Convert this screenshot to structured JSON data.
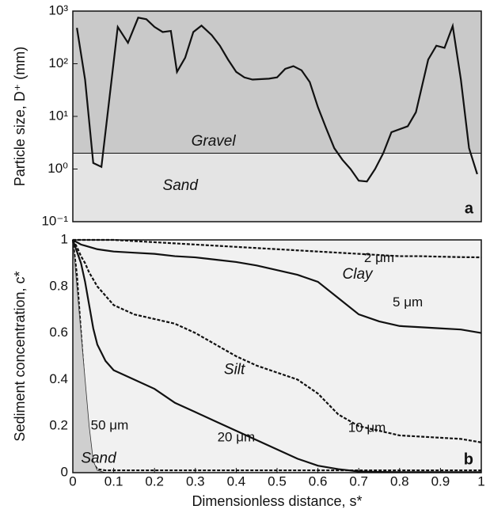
{
  "chart_data": [
    {
      "type": "line",
      "ylabel": "Particle size, D⁺ (mm)",
      "panel_label": "a",
      "ylog": true,
      "xlim": [
        0,
        1
      ],
      "ylim": [
        0.1,
        1000
      ],
      "yticks": [
        {
          "value": 0.1,
          "label": "10⁻¹"
        },
        {
          "value": 1,
          "label": "10⁰"
        },
        {
          "value": 10,
          "label": "10¹"
        },
        {
          "value": 100,
          "label": "10²"
        },
        {
          "value": 1000,
          "label": "10³"
        }
      ],
      "threshold": 2,
      "regions": [
        "Gravel",
        "Sand"
      ],
      "colors": [
        "#c9c9c9",
        "#e4e4e4"
      ],
      "x": [
        0.01,
        0.03,
        0.05,
        0.07,
        0.11,
        0.135,
        0.16,
        0.18,
        0.2,
        0.22,
        0.24,
        0.255,
        0.275,
        0.295,
        0.315,
        0.34,
        0.36,
        0.38,
        0.4,
        0.42,
        0.44,
        0.48,
        0.5,
        0.52,
        0.54,
        0.56,
        0.58,
        0.6,
        0.62,
        0.64,
        0.66,
        0.68,
        0.7,
        0.72,
        0.74,
        0.76,
        0.78,
        0.82,
        0.84,
        0.87,
        0.89,
        0.91,
        0.93,
        0.95,
        0.97,
        0.99
      ],
      "series": [
        {
          "color": "#111111",
          "values": [
            480,
            50,
            1.3,
            1.1,
            500,
            250,
            750,
            700,
            500,
            400,
            420,
            70,
            130,
            400,
            530,
            350,
            220,
            120,
            70,
            55,
            50,
            52,
            55,
            80,
            90,
            75,
            45,
            15,
            6,
            2.5,
            1.5,
            1,
            0.6,
            0.58,
            1,
            2,
            5,
            6.5,
            12,
            120,
            220,
            200,
            520,
            50,
            2.5,
            0.8
          ]
        }
      ]
    },
    {
      "type": "line",
      "ylabel": "Sediment concentration, c*",
      "xlabel": "Dimensionless distance, s*",
      "panel_label": "b",
      "xlim": [
        0,
        1
      ],
      "ylim": [
        0,
        1
      ],
      "xticks": [
        0,
        0.1,
        0.2,
        0.3,
        0.4,
        0.5,
        0.6,
        0.7,
        0.8,
        0.9,
        1
      ],
      "yticks": [
        0,
        0.2,
        0.4,
        0.6,
        0.8,
        1
      ],
      "regions": [
        "Clay",
        "Silt",
        "Sand"
      ],
      "colors": [
        "#f1f1f1",
        "#cfcfcf"
      ],
      "x": [
        0,
        0.01,
        0.02,
        0.03,
        0.04,
        0.05,
        0.06,
        0.08,
        0.1,
        0.15,
        0.2,
        0.25,
        0.3,
        0.35,
        0.4,
        0.45,
        0.5,
        0.55,
        0.6,
        0.65,
        0.7,
        0.75,
        0.8,
        0.85,
        0.9,
        0.95,
        1
      ],
      "series": [
        {
          "name": "2 μm",
          "color": "#111111",
          "style": "dashed",
          "values": [
            1,
            1,
            1,
            1,
            1,
            1,
            1,
            1,
            1,
            0.995,
            0.99,
            0.985,
            0.98,
            0.975,
            0.97,
            0.965,
            0.96,
            0.955,
            0.95,
            0.945,
            0.94,
            0.935,
            0.93,
            0.93,
            0.928,
            0.926,
            0.925
          ]
        },
        {
          "name": "5 μm",
          "color": "#111111",
          "style": "solid",
          "values": [
            1,
            0.99,
            0.98,
            0.975,
            0.97,
            0.965,
            0.96,
            0.955,
            0.95,
            0.945,
            0.94,
            0.93,
            0.925,
            0.915,
            0.905,
            0.89,
            0.87,
            0.85,
            0.82,
            0.75,
            0.68,
            0.65,
            0.63,
            0.625,
            0.62,
            0.615,
            0.6
          ]
        },
        {
          "name": "10 μm",
          "color": "#111111",
          "style": "dashed",
          "values": [
            1,
            0.97,
            0.93,
            0.9,
            0.86,
            0.83,
            0.8,
            0.76,
            0.72,
            0.68,
            0.66,
            0.64,
            0.6,
            0.55,
            0.5,
            0.46,
            0.43,
            0.4,
            0.34,
            0.25,
            0.2,
            0.18,
            0.16,
            0.155,
            0.15,
            0.145,
            0.13
          ]
        },
        {
          "name": "20 μm",
          "color": "#111111",
          "style": "solid",
          "values": [
            1,
            0.95,
            0.9,
            0.82,
            0.72,
            0.62,
            0.55,
            0.48,
            0.44,
            0.4,
            0.36,
            0.3,
            0.26,
            0.22,
            0.18,
            0.14,
            0.1,
            0.06,
            0.03,
            0.015,
            0.005,
            0.003,
            0.002,
            0.002,
            0.002,
            0.002,
            0.002
          ]
        },
        {
          "name": "50 μm",
          "color": "#111111",
          "style": "dashed",
          "values": [
            1,
            0.85,
            0.6,
            0.35,
            0.12,
            0.04,
            0.015,
            0.01,
            0.01,
            0.01,
            0.01,
            0.01,
            0.01,
            0.01,
            0.01,
            0.01,
            0.01,
            0.01,
            0.01,
            0.01,
            0.01,
            0.01,
            0.01,
            0.01,
            0.01,
            0.01,
            0.01
          ]
        },
        {
          "color": "#333333",
          "style": "thin",
          "values": [
            1,
            0.8,
            0.6,
            0.4,
            0.2,
            0.05,
            0.01,
            0,
            0,
            0,
            0,
            0,
            0,
            0,
            0,
            0,
            0,
            0,
            0,
            0,
            0,
            0,
            0,
            0,
            0,
            0,
            0
          ]
        }
      ]
    }
  ]
}
